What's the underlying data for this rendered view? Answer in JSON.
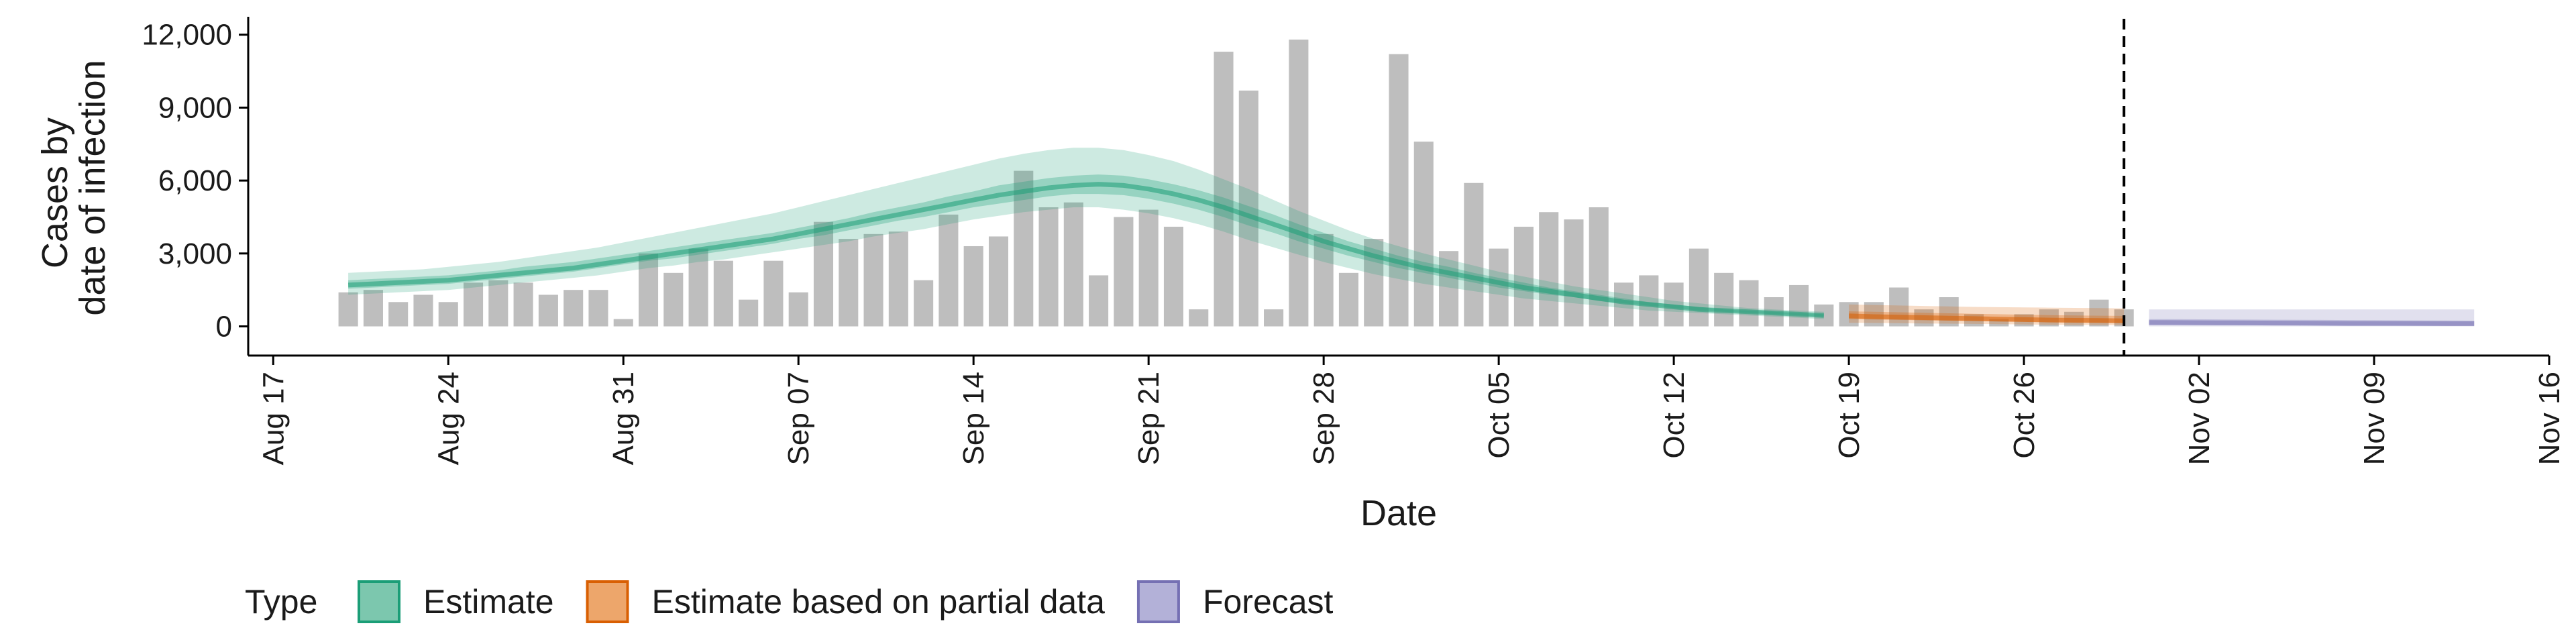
{
  "chart_data": {
    "type": "bar",
    "xlabel": "Date",
    "ylabel_lines": [
      "Cases by",
      "date of infection"
    ],
    "xlim": [
      "2020-08-16",
      "2020-11-16"
    ],
    "ylim": [
      -1200,
      12600
    ],
    "x_ticks": [
      {
        "date": "2020-08-17",
        "label": "Aug 17"
      },
      {
        "date": "2020-08-24",
        "label": "Aug 24"
      },
      {
        "date": "2020-08-31",
        "label": "Aug 31"
      },
      {
        "date": "2020-09-07",
        "label": "Sep 07"
      },
      {
        "date": "2020-09-14",
        "label": "Sep 14"
      },
      {
        "date": "2020-09-21",
        "label": "Sep 21"
      },
      {
        "date": "2020-09-28",
        "label": "Sep 28"
      },
      {
        "date": "2020-10-05",
        "label": "Oct 05"
      },
      {
        "date": "2020-10-12",
        "label": "Oct 12"
      },
      {
        "date": "2020-10-19",
        "label": "Oct 19"
      },
      {
        "date": "2020-10-26",
        "label": "Oct 26"
      },
      {
        "date": "2020-11-02",
        "label": "Nov 02"
      },
      {
        "date": "2020-11-09",
        "label": "Nov 09"
      },
      {
        "date": "2020-11-16",
        "label": "Nov 16"
      }
    ],
    "y_ticks": [
      {
        "value": 0,
        "label": "0"
      },
      {
        "value": 3000,
        "label": "3,000"
      },
      {
        "value": 6000,
        "label": "6,000"
      },
      {
        "value": 9000,
        "label": "9,000"
      },
      {
        "value": 12000,
        "label": "12,000"
      }
    ],
    "bars": {
      "start_date": "2020-08-20",
      "values": [
        1400,
        1500,
        1000,
        1300,
        1000,
        1800,
        1900,
        1800,
        1300,
        1500,
        1500,
        300,
        3000,
        2200,
        3200,
        2700,
        1100,
        2700,
        1400,
        4300,
        3600,
        3800,
        3900,
        1900,
        4600,
        3300,
        3700,
        6400,
        4900,
        5100,
        2100,
        4500,
        4800,
        4100,
        700,
        11300,
        9700,
        700,
        11800,
        3800,
        2200,
        3600,
        11200,
        7600,
        3100,
        5900,
        3200,
        4100,
        4700,
        4400,
        4900,
        1800,
        2100,
        1800,
        3200,
        2200,
        1900,
        1200,
        1700,
        900,
        1000,
        1000,
        1600,
        700,
        1200,
        500,
        300,
        500,
        700,
        600,
        1100,
        700
      ],
      "color": "#bebebe"
    },
    "forecast_cutoff_date": "2020-10-30",
    "series": [
      {
        "name": "Estimate",
        "color": "#1b9e77",
        "start_date": "2020-08-20",
        "median": [
          1700,
          1750,
          1800,
          1850,
          1900,
          2000,
          2100,
          2200,
          2300,
          2400,
          2550,
          2700,
          2850,
          3000,
          3150,
          3300,
          3450,
          3600,
          3800,
          4000,
          4200,
          4400,
          4600,
          4800,
          5000,
          5200,
          5400,
          5550,
          5700,
          5800,
          5850,
          5800,
          5650,
          5450,
          5200,
          4900,
          4550,
          4200,
          3850,
          3500,
          3200,
          2900,
          2650,
          2400,
          2200,
          2000,
          1800,
          1600,
          1450,
          1300,
          1150,
          1000,
          900,
          800,
          700,
          650,
          600,
          550,
          500,
          450
        ],
        "lower90": [
          1300,
          1350,
          1400,
          1450,
          1500,
          1600,
          1700,
          1800,
          1900,
          2000,
          2100,
          2250,
          2400,
          2500,
          2650,
          2750,
          2900,
          3050,
          3200,
          3350,
          3500,
          3700,
          3850,
          4000,
          4200,
          4400,
          4550,
          4700,
          4800,
          4900,
          4900,
          4800,
          4650,
          4450,
          4200,
          3900,
          3550,
          3250,
          2950,
          2650,
          2400,
          2150,
          1950,
          1750,
          1600,
          1450,
          1300,
          1150,
          1050,
          950,
          850,
          750,
          650,
          600,
          550,
          500,
          450,
          400,
          350,
          300
        ],
        "upper90": [
          2200,
          2250,
          2300,
          2350,
          2450,
          2550,
          2650,
          2800,
          2950,
          3100,
          3250,
          3450,
          3650,
          3850,
          4050,
          4250,
          4450,
          4650,
          4900,
          5150,
          5400,
          5650,
          5900,
          6150,
          6400,
          6650,
          6900,
          7100,
          7250,
          7350,
          7350,
          7250,
          7050,
          6800,
          6450,
          6050,
          5650,
          5200,
          4750,
          4350,
          3950,
          3600,
          3300,
          3000,
          2750,
          2500,
          2250,
          2050,
          1850,
          1650,
          1500,
          1350,
          1200,
          1050,
          950,
          850,
          750,
          700,
          650,
          600
        ],
        "lower50": [
          1550,
          1600,
          1650,
          1700,
          1750,
          1850,
          1950,
          2050,
          2150,
          2250,
          2400,
          2550,
          2700,
          2800,
          2950,
          3100,
          3250,
          3400,
          3600,
          3750,
          3950,
          4150,
          4350,
          4500,
          4700,
          4900,
          5050,
          5200,
          5350,
          5450,
          5450,
          5400,
          5250,
          5050,
          4800,
          4500,
          4150,
          3850,
          3500,
          3200,
          2900,
          2650,
          2400,
          2200,
          2000,
          1800,
          1600,
          1450,
          1300,
          1200,
          1050,
          950,
          850,
          750,
          650,
          600,
          550,
          500,
          450,
          400
        ],
        "upper50": [
          1900,
          1950,
          2000,
          2050,
          2100,
          2200,
          2300,
          2450,
          2550,
          2650,
          2800,
          2950,
          3100,
          3250,
          3400,
          3550,
          3700,
          3850,
          4050,
          4250,
          4450,
          4700,
          4900,
          5100,
          5350,
          5550,
          5800,
          5950,
          6100,
          6200,
          6250,
          6200,
          6050,
          5850,
          5600,
          5300,
          4950,
          4600,
          4200,
          3850,
          3500,
          3200,
          2900,
          2650,
          2450,
          2200,
          2000,
          1800,
          1600,
          1450,
          1300,
          1150,
          1000,
          900,
          800,
          700,
          650,
          600,
          550,
          500
        ]
      },
      {
        "name": "Estimate based on partial data",
        "color": "#d95f02",
        "start_date": "2020-10-19",
        "median": [
          430,
          400,
          380,
          360,
          340,
          320,
          300,
          280,
          260,
          250,
          240,
          230
        ],
        "lower90": [
          150,
          140,
          130,
          120,
          110,
          100,
          90,
          80,
          70,
          60,
          55,
          50
        ],
        "upper90": [
          900,
          880,
          860,
          840,
          820,
          800,
          790,
          780,
          770,
          760,
          750,
          740
        ],
        "lower50": [
          300,
          280,
          265,
          250,
          235,
          220,
          205,
          190,
          175,
          165,
          155,
          145
        ],
        "upper50": [
          620,
          600,
          580,
          560,
          540,
          520,
          500,
          480,
          465,
          450,
          440,
          430
        ]
      },
      {
        "name": "Forecast",
        "color": "#7570b3",
        "start_date": "2020-10-31",
        "median": [
          160,
          155,
          150,
          145,
          140,
          135,
          130,
          125,
          120,
          118,
          116,
          114,
          112,
          110
        ],
        "lower90": [
          0,
          0,
          0,
          0,
          0,
          0,
          0,
          0,
          0,
          0,
          0,
          0,
          0,
          0
        ],
        "upper90": [
          700,
          700,
          700,
          700,
          700,
          700,
          700,
          700,
          700,
          700,
          700,
          700,
          700,
          700
        ],
        "lower50": [
          60,
          58,
          56,
          54,
          52,
          50,
          48,
          46,
          44,
          42,
          40,
          38,
          36,
          35
        ],
        "upper50": [
          300,
          295,
          290,
          285,
          280,
          275,
          270,
          265,
          260,
          255,
          250,
          245,
          240,
          235
        ]
      }
    ],
    "legend": {
      "title": "Type",
      "placement": "bottom-left",
      "entries": [
        {
          "label": "Estimate",
          "fill": "#7cc7ae",
          "stroke": "#1b9e77"
        },
        {
          "label": "Estimate based on partial data",
          "fill": "#eda66b",
          "stroke": "#d95f02"
        },
        {
          "label": "Forecast",
          "fill": "#b3b1d8",
          "stroke": "#7570b3"
        }
      ]
    },
    "grid": false
  }
}
